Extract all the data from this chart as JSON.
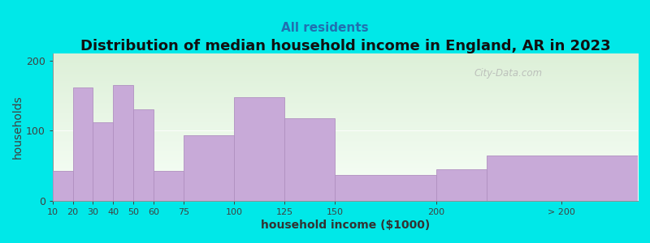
{
  "title": "Distribution of median household income in England, AR in 2023",
  "subtitle": "All residents",
  "xlabel": "household income ($1000)",
  "ylabel": "households",
  "bar_lefts": [
    10,
    20,
    30,
    40,
    50,
    60,
    75,
    100,
    125,
    150,
    200,
    225
  ],
  "bar_widths": [
    10,
    10,
    10,
    10,
    10,
    15,
    25,
    25,
    25,
    50,
    25,
    75
  ],
  "bar_heights": [
    42,
    162,
    112,
    165,
    130,
    42,
    93,
    148,
    118,
    37,
    45,
    65
  ],
  "tick_positions": [
    10,
    20,
    30,
    40,
    50,
    60,
    75,
    100,
    125,
    150,
    200,
    262
  ],
  "tick_labels": [
    "10",
    "20",
    "30",
    "40",
    "50",
    "60",
    "75",
    "100",
    "125",
    "150",
    "200",
    "> 200"
  ],
  "bar_color": "#c8aad8",
  "bar_edge_color": "#b090c0",
  "background_color": "#00e8e8",
  "plot_bg_top": "#ddf0d8",
  "plot_bg_bottom": "#f8fff8",
  "ylim": [
    0,
    210
  ],
  "yticks": [
    0,
    100,
    200
  ],
  "watermark": "City-Data.com",
  "title_fontsize": 13,
  "subtitle_fontsize": 11,
  "axis_label_fontsize": 10
}
